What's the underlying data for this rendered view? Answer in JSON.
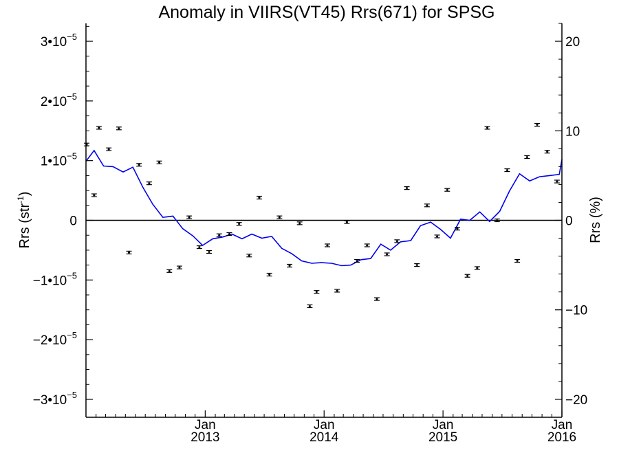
{
  "chart_data": {
    "type": "scatter",
    "title": "Anomaly in VIIRS(VT45) Rrs(671) for SPSG",
    "ylabel_left": "Rrs (str",
    "ylabel_left_sup": "-1",
    "ylabel_left_close": ")",
    "ylabel_right": "Rrs (%)",
    "xlim": [
      "2012-01-01",
      "2016-01-01"
    ],
    "ylim_left": [
      -3.3e-05,
      3.3e-05
    ],
    "ylim_right": [
      -22,
      22
    ],
    "zero_line": true,
    "grid": false,
    "x_ticks": [
      {
        "date": "2013-01-01",
        "month": "Jan",
        "year": "2013"
      },
      {
        "date": "2014-01-01",
        "month": "Jan",
        "year": "2014"
      },
      {
        "date": "2015-01-01",
        "month": "Jan",
        "year": "2015"
      },
      {
        "date": "2016-01-01",
        "month": "Jan",
        "year": "2016"
      }
    ],
    "y_ticks_left": [
      {
        "value": 3e-05,
        "mant": "3•10",
        "exp": "−5"
      },
      {
        "value": 2e-05,
        "mant": "2•10",
        "exp": "−5"
      },
      {
        "value": 1e-05,
        "mant": "1•10",
        "exp": "−5"
      },
      {
        "value": 0,
        "mant": "0",
        "exp": ""
      },
      {
        "value": -1e-05,
        "mant": "−1•10",
        "exp": "−5"
      },
      {
        "value": -2e-05,
        "mant": "−2•10",
        "exp": "−5"
      },
      {
        "value": -3e-05,
        "mant": "−3•10",
        "exp": "−5"
      }
    ],
    "y_ticks_right": [
      {
        "value": 20,
        "label": "20"
      },
      {
        "value": 10,
        "label": "10"
      },
      {
        "value": 0,
        "label": "0"
      },
      {
        "value": -10,
        "label": "−10"
      },
      {
        "value": -20,
        "label": "−20"
      }
    ],
    "series": [
      {
        "kind": "points_with_error_bars",
        "color": "#000000",
        "points": [
          {
            "x": "2012-01-03",
            "y": 1.27e-05
          },
          {
            "x": "2012-01-26",
            "y": 4.2e-06
          },
          {
            "x": "2012-02-10",
            "y": 1.55e-05
          },
          {
            "x": "2012-03-11",
            "y": 1.19e-05
          },
          {
            "x": "2012-04-11",
            "y": 1.54e-05
          },
          {
            "x": "2012-05-12",
            "y": -5.4e-06
          },
          {
            "x": "2012-06-12",
            "y": 9.3e-06
          },
          {
            "x": "2012-07-13",
            "y": 6.2e-06
          },
          {
            "x": "2012-08-13",
            "y": 9.7e-06
          },
          {
            "x": "2012-09-13",
            "y": -8.5e-06
          },
          {
            "x": "2012-10-14",
            "y": -7.9e-06
          },
          {
            "x": "2012-11-13",
            "y": 5e-07
          },
          {
            "x": "2012-12-14",
            "y": -4.5e-06
          },
          {
            "x": "2013-01-13",
            "y": -5.3e-06
          },
          {
            "x": "2013-02-13",
            "y": -2.5e-06
          },
          {
            "x": "2013-03-16",
            "y": -2.3e-06
          },
          {
            "x": "2013-04-15",
            "y": -6e-07
          },
          {
            "x": "2013-05-16",
            "y": -5.9e-06
          },
          {
            "x": "2013-06-16",
            "y": 3.8e-06
          },
          {
            "x": "2013-07-17",
            "y": -9.1e-06
          },
          {
            "x": "2013-08-17",
            "y": 5e-07
          },
          {
            "x": "2013-09-17",
            "y": -7.6e-06
          },
          {
            "x": "2013-10-18",
            "y": -5e-07
          },
          {
            "x": "2013-11-18",
            "y": -1.44e-05
          },
          {
            "x": "2013-12-09",
            "y": -1.2e-05
          },
          {
            "x": "2014-01-11",
            "y": -4.2e-06
          },
          {
            "x": "2014-02-10",
            "y": -1.18e-05
          },
          {
            "x": "2014-03-12",
            "y": -3e-07
          },
          {
            "x": "2014-04-12",
            "y": -6.8e-06
          },
          {
            "x": "2014-05-13",
            "y": -4.2e-06
          },
          {
            "x": "2014-06-12",
            "y": -1.32e-05
          },
          {
            "x": "2014-07-13",
            "y": -5.7e-06
          },
          {
            "x": "2014-08-13",
            "y": -3.5e-06
          },
          {
            "x": "2014-09-12",
            "y": 5.4e-06
          },
          {
            "x": "2014-10-13",
            "y": -7.5e-06
          },
          {
            "x": "2014-11-13",
            "y": 2.5e-06
          },
          {
            "x": "2014-12-14",
            "y": -2.7e-06
          },
          {
            "x": "2015-01-14",
            "y": 5.1e-06
          },
          {
            "x": "2015-02-14",
            "y": -1.4e-06
          },
          {
            "x": "2015-03-17",
            "y": -9.3e-06
          },
          {
            "x": "2015-04-16",
            "y": -8e-06
          },
          {
            "x": "2015-05-17",
            "y": 1.55e-05
          },
          {
            "x": "2015-06-16",
            "y": 0.0
          },
          {
            "x": "2015-07-17",
            "y": 8.4e-06
          },
          {
            "x": "2015-08-17",
            "y": -6.8e-06
          },
          {
            "x": "2015-09-16",
            "y": 1.06e-05
          },
          {
            "x": "2015-10-17",
            "y": 1.6e-05
          },
          {
            "x": "2015-11-17",
            "y": 1.15e-05
          },
          {
            "x": "2015-12-17",
            "y": 6.5e-06
          }
        ]
      },
      {
        "kind": "line",
        "color": "#0000ee",
        "points": [
          {
            "x": "2012-01-01",
            "y": 9.9e-06
          },
          {
            "x": "2012-01-26",
            "y": 1.17e-05
          },
          {
            "x": "2012-02-24",
            "y": 9.1e-06
          },
          {
            "x": "2012-03-24",
            "y": 9e-06
          },
          {
            "x": "2012-04-24",
            "y": 8.1e-06
          },
          {
            "x": "2012-05-24",
            "y": 8.9e-06
          },
          {
            "x": "2012-06-24",
            "y": 5.5e-06
          },
          {
            "x": "2012-07-24",
            "y": 2.7e-06
          },
          {
            "x": "2012-08-24",
            "y": 5e-07
          },
          {
            "x": "2012-09-24",
            "y": 7e-07
          },
          {
            "x": "2012-10-24",
            "y": -1.4e-06
          },
          {
            "x": "2012-11-24",
            "y": -2.6e-06
          },
          {
            "x": "2012-12-24",
            "y": -4.2e-06
          },
          {
            "x": "2013-01-24",
            "y": -3.1e-06
          },
          {
            "x": "2013-02-24",
            "y": -2.8e-06
          },
          {
            "x": "2013-03-24",
            "y": -2.3e-06
          },
          {
            "x": "2013-04-24",
            "y": -3.1e-06
          },
          {
            "x": "2013-05-24",
            "y": -2.3e-06
          },
          {
            "x": "2013-06-24",
            "y": -3e-06
          },
          {
            "x": "2013-07-24",
            "y": -2.7e-06
          },
          {
            "x": "2013-08-24",
            "y": -4.7e-06
          },
          {
            "x": "2013-09-24",
            "y": -5.6e-06
          },
          {
            "x": "2013-10-24",
            "y": -6.8e-06
          },
          {
            "x": "2013-11-24",
            "y": -7.2e-06
          },
          {
            "x": "2013-12-24",
            "y": -7.1e-06
          },
          {
            "x": "2014-01-24",
            "y": -7.2e-06
          },
          {
            "x": "2014-02-24",
            "y": -7.6e-06
          },
          {
            "x": "2014-03-24",
            "y": -7.5e-06
          },
          {
            "x": "2014-04-24",
            "y": -6.6e-06
          },
          {
            "x": "2014-05-24",
            "y": -6.4e-06
          },
          {
            "x": "2014-06-24",
            "y": -4e-06
          },
          {
            "x": "2014-07-24",
            "y": -5e-06
          },
          {
            "x": "2014-08-24",
            "y": -3.6e-06
          },
          {
            "x": "2014-09-24",
            "y": -3.4e-06
          },
          {
            "x": "2014-10-24",
            "y": -9e-07
          },
          {
            "x": "2014-11-24",
            "y": -3e-07
          },
          {
            "x": "2014-12-24",
            "y": -1.5e-06
          },
          {
            "x": "2015-01-24",
            "y": -3e-06
          },
          {
            "x": "2015-02-24",
            "y": 2e-07
          },
          {
            "x": "2015-03-24",
            "y": 0.0
          },
          {
            "x": "2015-04-24",
            "y": 1.4e-06
          },
          {
            "x": "2015-05-24",
            "y": -2e-07
          },
          {
            "x": "2015-06-24",
            "y": 1.5e-06
          },
          {
            "x": "2015-07-24",
            "y": 4.9e-06
          },
          {
            "x": "2015-08-24",
            "y": 7.8e-06
          },
          {
            "x": "2015-09-24",
            "y": 6.6e-06
          },
          {
            "x": "2015-10-24",
            "y": 7.3e-06
          },
          {
            "x": "2015-11-24",
            "y": 7.5e-06
          },
          {
            "x": "2015-12-24",
            "y": 7.7e-06
          },
          {
            "x": "2016-01-01",
            "y": 1.02e-05
          }
        ]
      }
    ]
  }
}
